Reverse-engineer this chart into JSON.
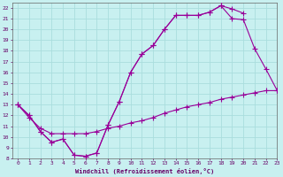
{
  "xlabel": "Windchill (Refroidissement éolien,°C)",
  "bg_color": "#c8f0f0",
  "line_color": "#990099",
  "grid_color": "#aadddd",
  "xlim": [
    -0.5,
    23
  ],
  "ylim": [
    8,
    22.5
  ],
  "xticks": [
    0,
    1,
    2,
    3,
    4,
    5,
    6,
    7,
    8,
    9,
    10,
    11,
    12,
    13,
    14,
    15,
    16,
    17,
    18,
    19,
    20,
    21,
    22,
    23
  ],
  "yticks": [
    8,
    9,
    10,
    11,
    12,
    13,
    14,
    15,
    16,
    17,
    18,
    19,
    20,
    21,
    22
  ],
  "line1_x": [
    0,
    1,
    2,
    3,
    4,
    5,
    6,
    7,
    8,
    9,
    10,
    11,
    12,
    13,
    14,
    15,
    16,
    17,
    18,
    19,
    20
  ],
  "line1_y": [
    13,
    12,
    10.5,
    9.5,
    9.8,
    8.3,
    8.2,
    8.5,
    11.1,
    13.3,
    16,
    17.7,
    18.5,
    20.0,
    21.3,
    21.3,
    21.3,
    21.6,
    22.2,
    21.9,
    21.5
  ],
  "line2_x": [
    0,
    1,
    2,
    3,
    4,
    5,
    6,
    7,
    8,
    9,
    10,
    11,
    12,
    13,
    14,
    15,
    16,
    17,
    18,
    19,
    20,
    21,
    22,
    23
  ],
  "line2_y": [
    13,
    12,
    10.5,
    9.5,
    9.8,
    8.3,
    8.2,
    8.5,
    11.1,
    13.3,
    16,
    17.7,
    18.5,
    20.0,
    21.3,
    21.3,
    21.3,
    21.6,
    22.2,
    21.0,
    20.9,
    18.2,
    16.3,
    14.3
  ],
  "line3_x": [
    0,
    1,
    2,
    3,
    4,
    5,
    6,
    7,
    8,
    9,
    10,
    11,
    12,
    13,
    14,
    15,
    16,
    17,
    18,
    19,
    20,
    21,
    22,
    23
  ],
  "line3_y": [
    13.0,
    11.8,
    10.8,
    10.3,
    10.3,
    10.3,
    10.3,
    10.5,
    10.8,
    11.0,
    11.3,
    11.5,
    11.8,
    12.2,
    12.5,
    12.8,
    13.0,
    13.2,
    13.5,
    13.7,
    13.9,
    14.1,
    14.3,
    14.3
  ]
}
